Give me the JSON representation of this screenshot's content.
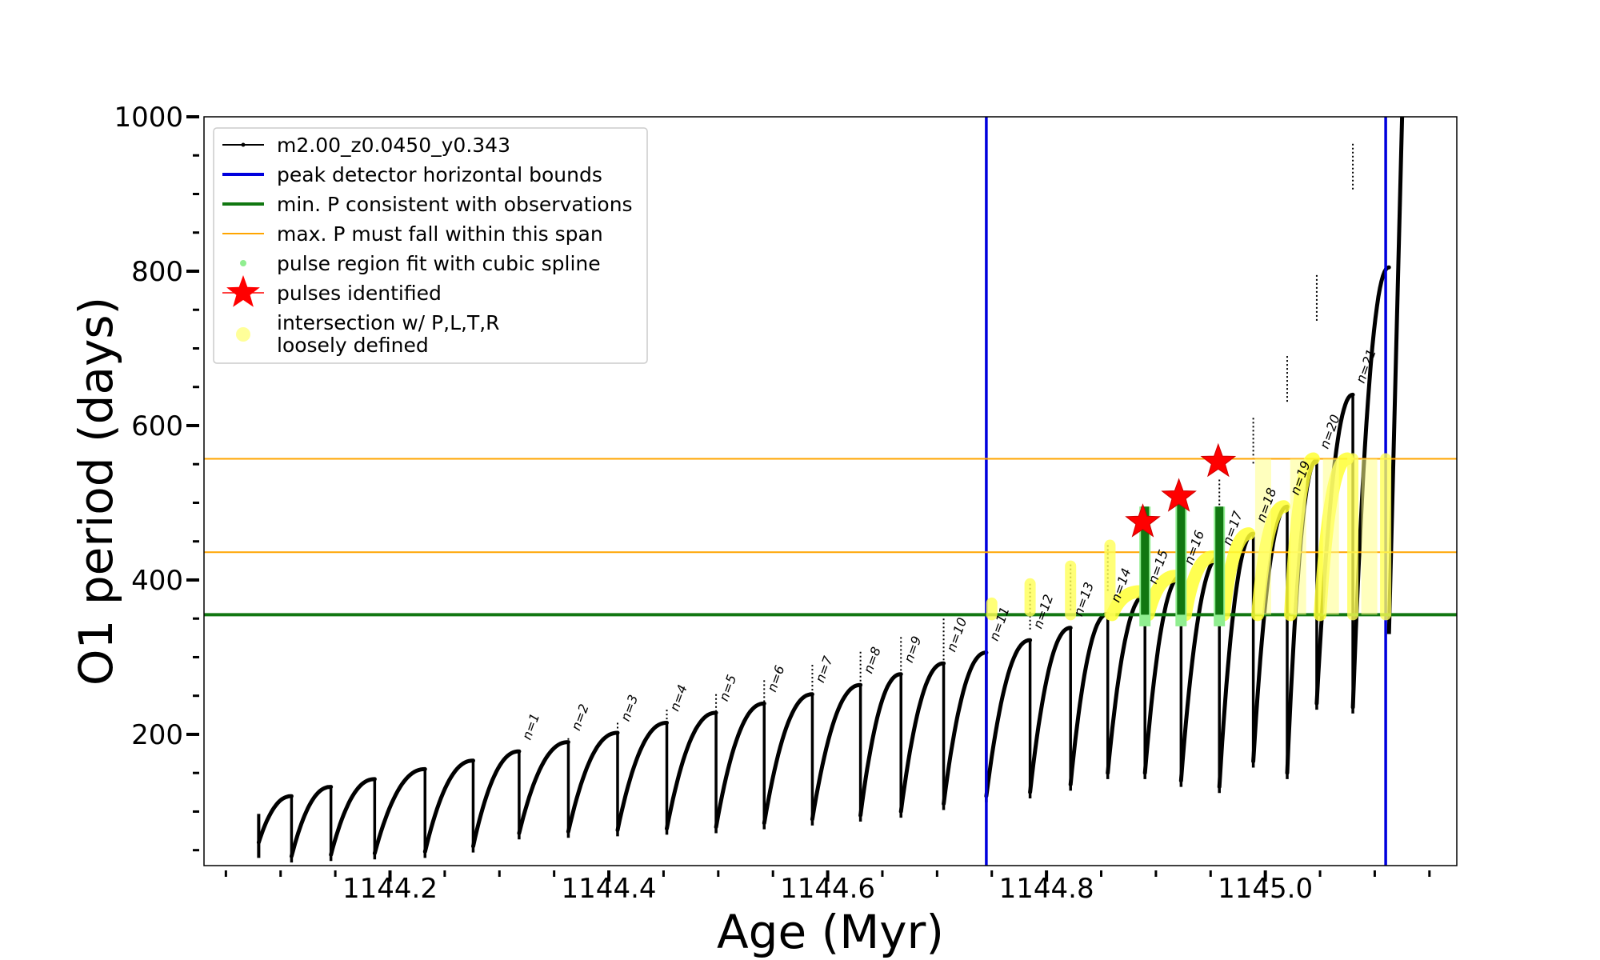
{
  "chart_data": {
    "type": "line",
    "xlabel": "Age (Myr)",
    "ylabel": "O1 period (days)",
    "xlim": [
      1144.03,
      1145.175
    ],
    "ylim": [
      30,
      1000
    ],
    "xticks": [
      1144.2,
      1144.4,
      1144.6,
      1144.8,
      1145.0
    ],
    "xtick_labels": [
      "1144.2",
      "1144.4",
      "1144.6",
      "1144.8",
      "1145.0"
    ],
    "yticks": [
      200,
      400,
      600,
      800,
      1000
    ],
    "ytick_labels": [
      "200",
      "400",
      "600",
      "800",
      "1000"
    ],
    "legend_position": "upper-left",
    "legend": [
      {
        "key": "model",
        "label": "m2.00_z0.0450_y0.343",
        "color": "#000000",
        "kind": "line-dot"
      },
      {
        "key": "peak_bounds",
        "label": "peak detector horizontal bounds",
        "color": "#0000dd",
        "kind": "line"
      },
      {
        "key": "min_p",
        "label": "min. P consistent with observations",
        "color": "#117711",
        "kind": "line"
      },
      {
        "key": "max_p",
        "label": "max. P must fall within this span",
        "color": "#ffa500",
        "kind": "thin-line"
      },
      {
        "key": "spline",
        "label": "pulse region fit with cubic spline",
        "color": "#90ee90",
        "kind": "dot"
      },
      {
        "key": "pulses",
        "label": "pulses identified",
        "color": "#ff0000",
        "kind": "star"
      },
      {
        "key": "intersection",
        "label": "intersection w/ P,L,T,R",
        "label2": "loosely defined",
        "color": "#ffff99",
        "kind": "big-dot"
      }
    ],
    "vertical_lines": [
      1144.745,
      1145.11
    ],
    "min_P": 355,
    "max_P_span": [
      436,
      557
    ],
    "pulses": [
      {
        "label": "n=1",
        "x": 1144.318,
        "top": 178,
        "drop": 72,
        "next_peak": 190
      },
      {
        "label": "n=2",
        "x": 1144.363,
        "top": 190,
        "drop": 74,
        "next_peak": 202
      },
      {
        "label": "n=3",
        "x": 1144.408,
        "top": 202,
        "drop": 76,
        "next_peak": 215
      },
      {
        "label": "n=4",
        "x": 1144.453,
        "top": 215,
        "drop": 78,
        "next_peak": 228
      },
      {
        "label": "n=5",
        "x": 1144.498,
        "top": 228,
        "drop": 80,
        "next_peak": 240
      },
      {
        "label": "n=6",
        "x": 1144.542,
        "top": 240,
        "drop": 85,
        "next_peak": 252
      },
      {
        "label": "n=7",
        "x": 1144.586,
        "top": 252,
        "drop": 90,
        "next_peak": 264
      },
      {
        "label": "n=8",
        "x": 1144.63,
        "top": 264,
        "drop": 95,
        "next_peak": 278
      },
      {
        "label": "n=9",
        "x": 1144.667,
        "top": 278,
        "drop": 100,
        "next_peak": 292
      },
      {
        "label": "n=10",
        "x": 1144.706,
        "top": 292,
        "drop": 110,
        "next_peak": 306
      },
      {
        "label": "n=11",
        "x": 1144.745,
        "top": 306,
        "drop": 120,
        "next_peak": 322
      },
      {
        "label": "n=12",
        "x": 1144.785,
        "top": 322,
        "drop": 125,
        "next_peak": 338
      },
      {
        "label": "n=13",
        "x": 1144.822,
        "top": 338,
        "drop": 135,
        "next_peak": 356
      },
      {
        "label": "n=14",
        "x": 1144.856,
        "top": 356,
        "drop": 150,
        "next_peak": 380
      },
      {
        "label": "n=15",
        "x": 1144.89,
        "top": 380,
        "drop": 150,
        "next_peak": 405
      },
      {
        "label": "n=16",
        "x": 1144.923,
        "top": 405,
        "drop": 140,
        "next_peak": 430
      },
      {
        "label": "n=17",
        "x": 1144.958,
        "top": 430,
        "drop": 132,
        "next_peak": 460
      },
      {
        "label": "n=18",
        "x": 1144.989,
        "top": 460,
        "drop": 165,
        "next_peak": 495
      },
      {
        "label": "n=19",
        "x": 1145.02,
        "top": 495,
        "drop": 150,
        "next_peak": 555
      },
      {
        "label": "n=20",
        "x": 1145.047,
        "top": 555,
        "drop": 240,
        "next_peak": 640
      },
      {
        "label": "n=21",
        "x": 1145.08,
        "top": 640,
        "drop": 235,
        "next_peak": 805
      }
    ],
    "pre_pulses": [
      {
        "x": 1144.11,
        "top": 120,
        "drop": 42
      },
      {
        "x": 1144.146,
        "top": 132,
        "drop": 44
      },
      {
        "x": 1144.186,
        "top": 142,
        "drop": 46
      },
      {
        "x": 1144.232,
        "top": 155,
        "drop": 48
      },
      {
        "x": 1144.276,
        "top": 166,
        "drop": 55
      }
    ],
    "pulse_spikes": [
      {
        "x": 1144.318,
        "spike": 180
      },
      {
        "x": 1144.363,
        "spike": 195
      },
      {
        "x": 1144.408,
        "spike": 215
      },
      {
        "x": 1144.453,
        "spike": 232
      },
      {
        "x": 1144.498,
        "spike": 252
      },
      {
        "x": 1144.542,
        "spike": 270
      },
      {
        "x": 1144.586,
        "spike": 290
      },
      {
        "x": 1144.63,
        "spike": 307
      },
      {
        "x": 1144.667,
        "spike": 326
      },
      {
        "x": 1144.706,
        "spike": 350
      },
      {
        "x": 1144.745,
        "spike": 370
      },
      {
        "x": 1144.785,
        "spike": 395
      },
      {
        "x": 1144.822,
        "spike": 420
      },
      {
        "x": 1144.856,
        "spike": 445
      },
      {
        "x": 1144.89,
        "spike": 468
      },
      {
        "x": 1144.923,
        "spike": 495
      },
      {
        "x": 1144.958,
        "spike": 530
      },
      {
        "x": 1144.989,
        "spike": 610
      },
      {
        "x": 1145.02,
        "spike": 690
      },
      {
        "x": 1145.047,
        "spike": 795
      },
      {
        "x": 1145.08,
        "spike": 965
      },
      {
        "x": 1145.11,
        "spike": 1000
      }
    ],
    "start": {
      "x": 1144.08,
      "y_low": 40,
      "y_high": 97
    },
    "end": {
      "x": 1145.113,
      "y_low": 330,
      "y_top": 1000,
      "x_top": 1145.125
    },
    "stars": [
      {
        "x": 1144.888,
        "y": 475
      },
      {
        "x": 1144.921,
        "y": 508
      },
      {
        "x": 1144.957,
        "y": 553
      }
    ],
    "green_bars": [
      {
        "x": 1144.89,
        "y0": 355,
        "y1": 495
      },
      {
        "x": 1144.923,
        "y0": 355,
        "y1": 500
      },
      {
        "x": 1144.958,
        "y0": 355,
        "y1": 495
      }
    ],
    "yellow_marks": [
      {
        "x": 1144.75,
        "y0": 355,
        "y1": 370
      },
      {
        "x": 1144.785,
        "y0": 360,
        "y1": 395
      },
      {
        "x": 1144.822,
        "y0": 355,
        "y1": 418
      },
      {
        "x": 1144.858,
        "y0": 355,
        "y1": 445
      },
      {
        "x": 1145.08,
        "y0": 355,
        "y1": 557
      },
      {
        "x": 1145.11,
        "y0": 355,
        "y1": 557
      }
    ],
    "yellow_arcs": [
      {
        "x0": 1144.86,
        "x1": 1144.885,
        "y_low": 355,
        "y_high": 385
      },
      {
        "x0": 1144.893,
        "x1": 1144.918,
        "y_low": 355,
        "y_high": 405
      },
      {
        "x0": 1144.927,
        "x1": 1144.952,
        "y_low": 355,
        "y_high": 430
      },
      {
        "x0": 1144.962,
        "x1": 1144.985,
        "y_low": 355,
        "y_high": 460
      },
      {
        "x0": 1144.993,
        "x1": 1145.017,
        "y_low": 355,
        "y_high": 495
      },
      {
        "x0": 1145.023,
        "x1": 1145.044,
        "y_low": 355,
        "y_high": 557
      },
      {
        "x0": 1145.05,
        "x1": 1145.075,
        "y_low": 355,
        "y_high": 557
      }
    ]
  }
}
